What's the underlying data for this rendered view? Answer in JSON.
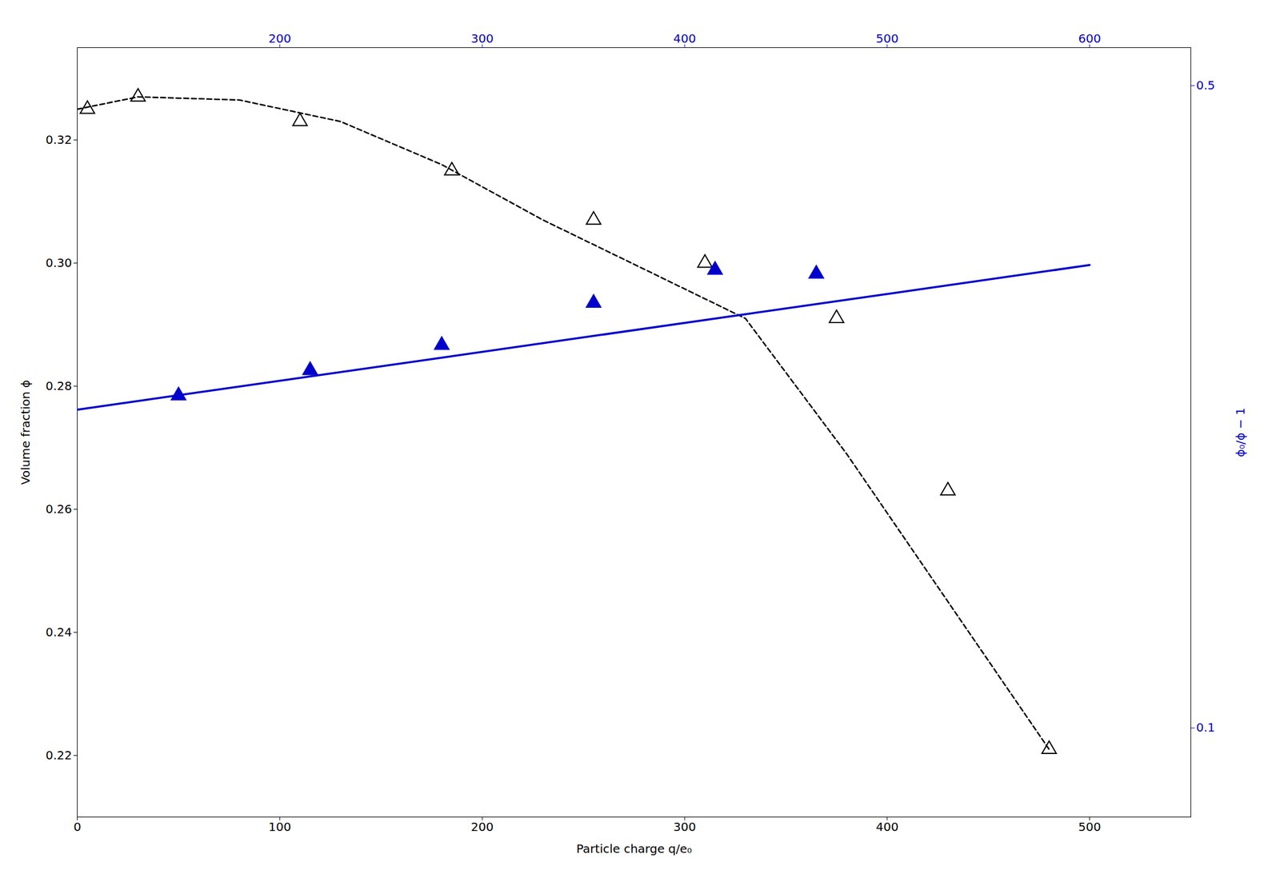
{
  "chart_data": {
    "type": "scatter",
    "xlabel": "Particle charge q/e₀",
    "ylabel": "Volume fraction ϕ",
    "y2label": "ϕ₀/ϕ − 1",
    "xlim": [
      0,
      550
    ],
    "xticks": [
      0,
      100,
      200,
      300,
      400,
      500
    ],
    "x2lim": [
      100,
      650
    ],
    "x2ticks": [
      200,
      300,
      400,
      500,
      600
    ],
    "ylim": [
      0.21,
      0.335
    ],
    "yticks": [
      0.22,
      0.24,
      0.26,
      0.28,
      {
        "value": 0.3,
        "label": "0.30"
      },
      0.32
    ],
    "y2lim": [
      0.08,
      0.55
    ],
    "y2ticks": [
      0.1,
      0.5
    ],
    "log": "y2",
    "grid": false,
    "series": [
      {
        "type": "line",
        "color": "#000000",
        "line_style": "dashed",
        "x": [
          0,
          30,
          80,
          130,
          180,
          230,
          280,
          330,
          380,
          430,
          480
        ],
        "values": [
          0.325,
          0.327,
          0.3265,
          0.323,
          0.316,
          0.307,
          0.299,
          0.291,
          0.269,
          0.245,
          0.221
        ]
      },
      {
        "type": "scatter",
        "color": "#000000",
        "marker": "open_triangle",
        "x": [
          5,
          30,
          110,
          185,
          255,
          310,
          375,
          430,
          480
        ],
        "values": [
          0.325,
          0.327,
          0.323,
          0.315,
          0.307,
          0.3,
          0.291,
          0.263,
          0.221
        ]
      },
      {
        "type": "line",
        "color": "#0000CC",
        "line_style": "solid",
        "axis": "y2",
        "x": [
          100,
          600
        ],
        "values": [
          0.222,
          0.319
        ]
      },
      {
        "type": "scatter",
        "color": "#0000CC",
        "marker": "filled_triangle",
        "axis": "y2",
        "x": [
          150,
          215,
          280,
          355,
          415,
          465
        ],
        "values": [
          0.23,
          0.245,
          0.261,
          0.29,
          0.315,
          0.312
        ]
      }
    ]
  }
}
